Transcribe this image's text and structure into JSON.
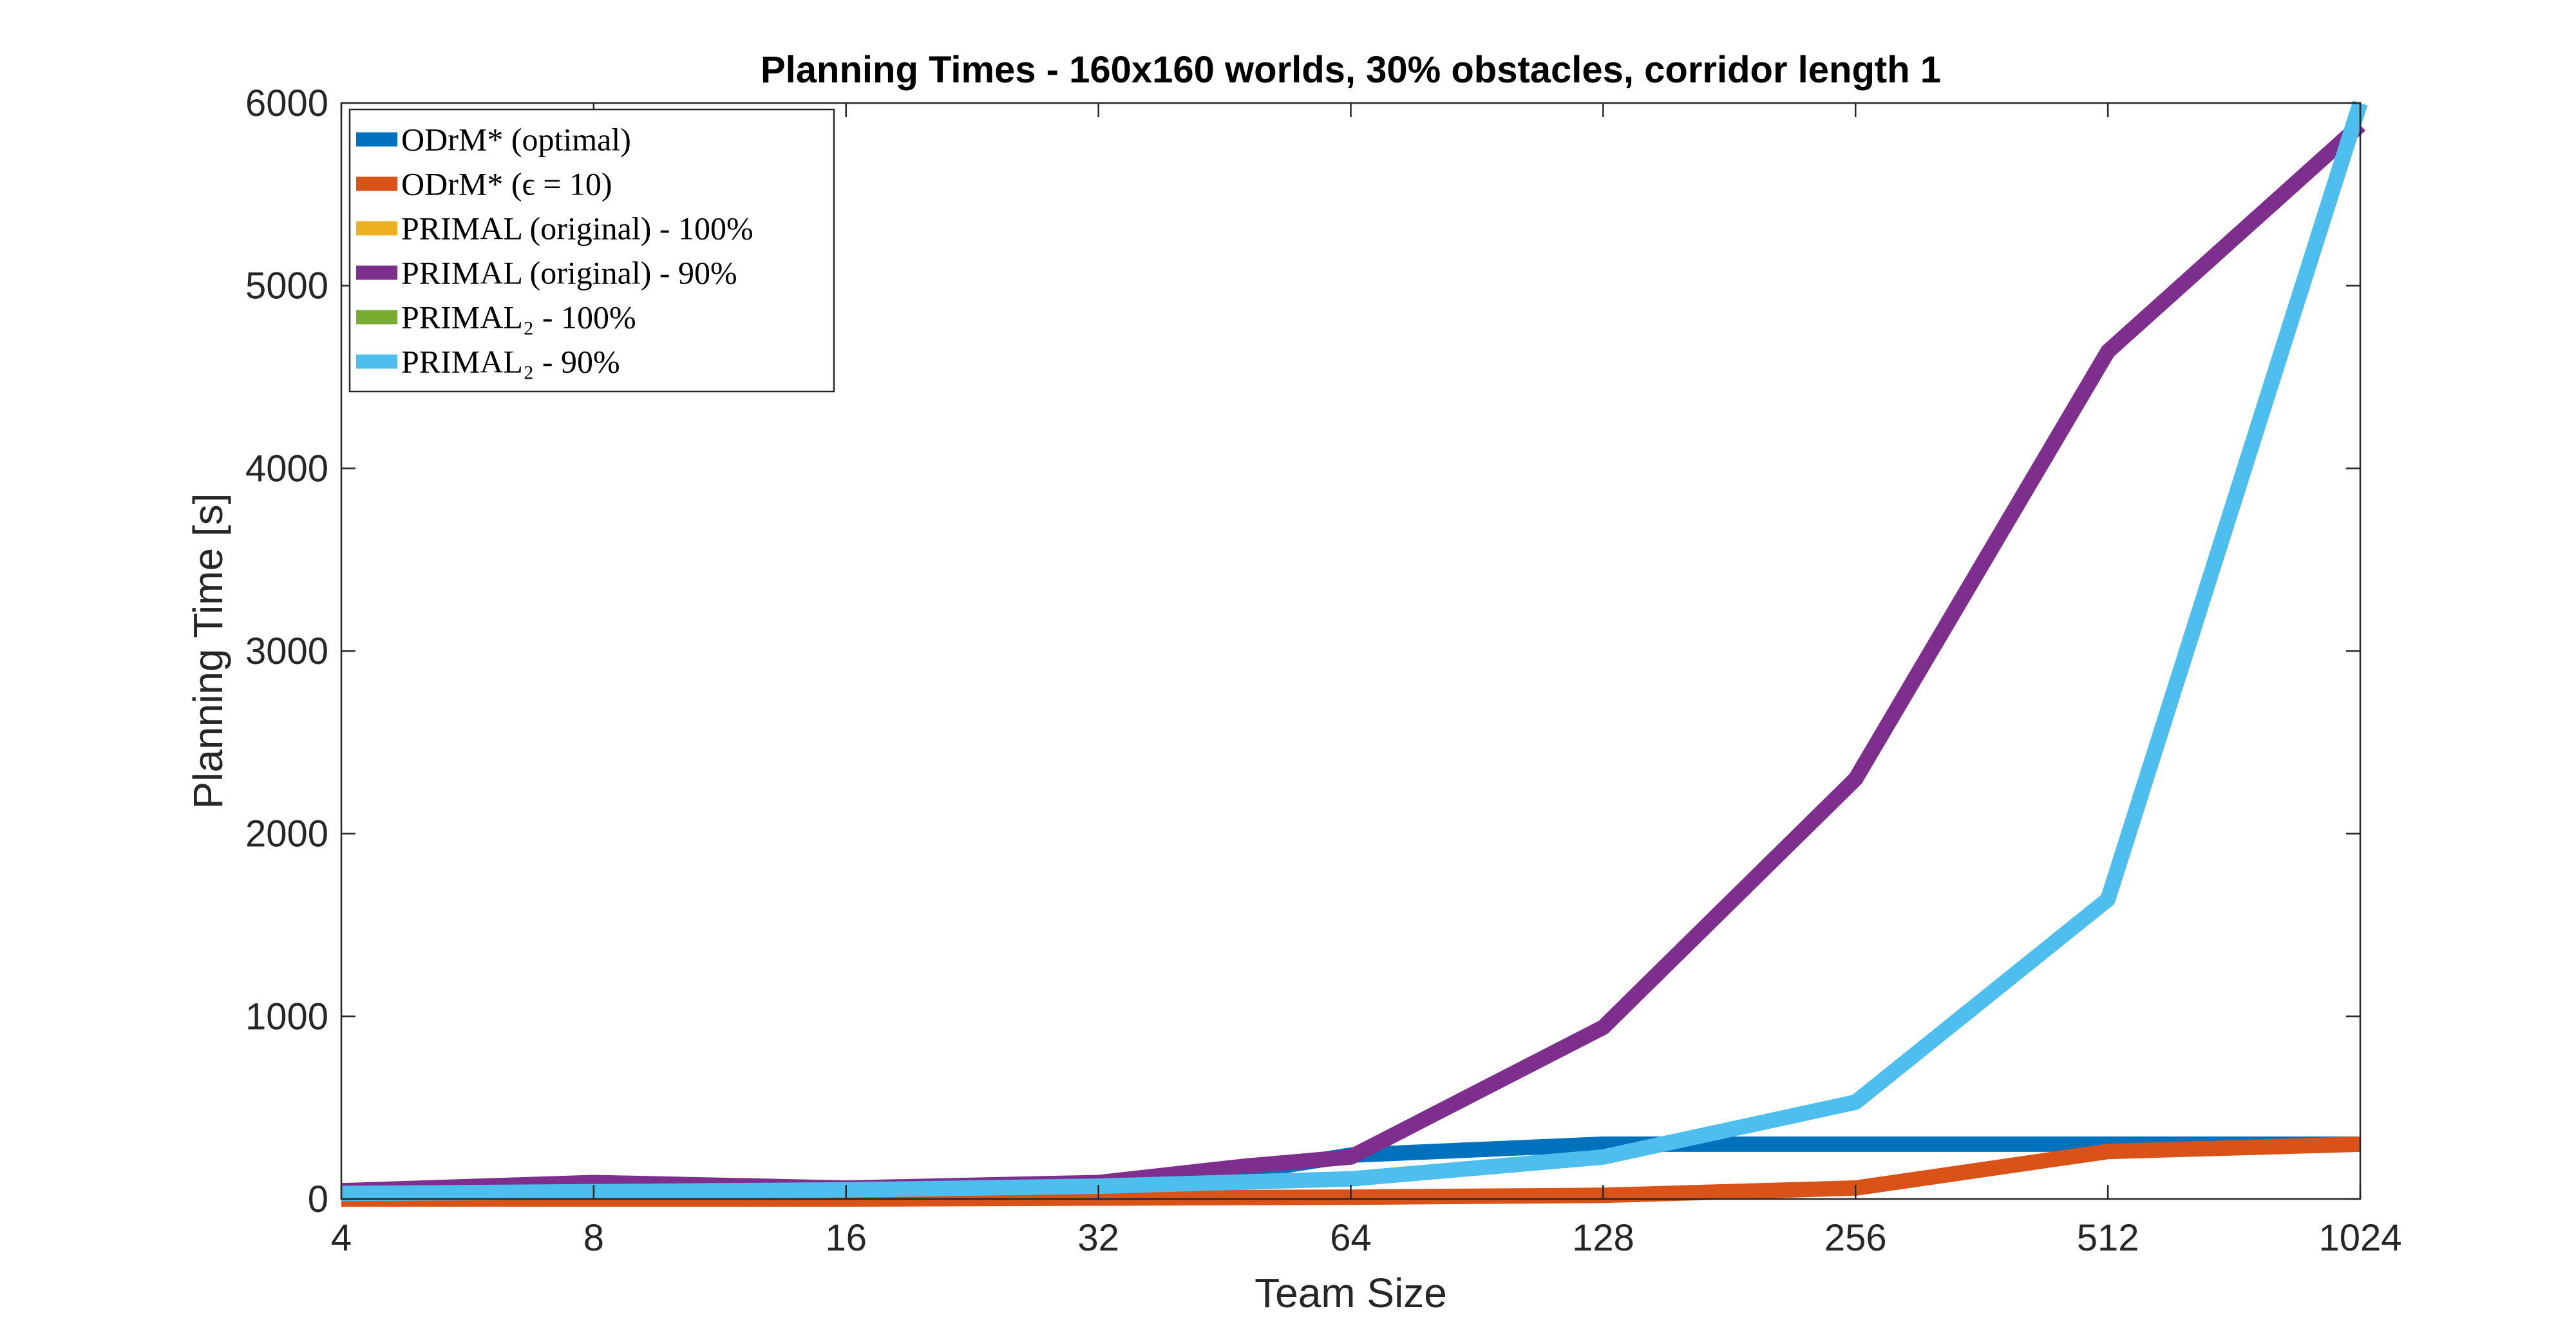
{
  "chart_data": {
    "type": "line",
    "title": "Planning Times - 160x160 worlds, 30% obstacles, corridor length 1",
    "xlabel": "Team Size",
    "ylabel": "Planning Time [s]",
    "x_scale": "log2",
    "xlim": [
      4,
      1024
    ],
    "ylim": [
      0,
      6000
    ],
    "x_ticks": [
      4,
      8,
      16,
      32,
      64,
      128,
      256,
      512,
      1024
    ],
    "x_tick_labels": [
      "4",
      "8",
      "16",
      "32",
      "64",
      "128",
      "256",
      "512",
      "1024"
    ],
    "y_ticks": [
      0,
      1000,
      2000,
      3000,
      4000,
      5000,
      6000
    ],
    "y_tick_labels": [
      "0",
      "1000",
      "2000",
      "3000",
      "4000",
      "5000",
      "6000"
    ],
    "grid": false,
    "legend_position": "top-left",
    "series": [
      {
        "name": "ODrM* (optimal)",
        "color": "#0072BD",
        "x": [
          4,
          8,
          16,
          32,
          48,
          64,
          128,
          256,
          512,
          1024
        ],
        "y": [
          40,
          45,
          50,
          70,
          150,
          240,
          300,
          300,
          300,
          300
        ]
      },
      {
        "name": "ODrM* (ϵ = 10)",
        "color": "#D95319",
        "x": [
          4,
          8,
          16,
          32,
          64,
          128,
          256,
          512,
          1024
        ],
        "y": [
          0,
          0,
          0,
          5,
          10,
          20,
          60,
          260,
          300
        ]
      },
      {
        "name": "PRIMAL (original) - 100%",
        "color": "#EDB120",
        "x": [],
        "y": []
      },
      {
        "name": "PRIMAL (original) - 90%",
        "color": "#7E2F8E",
        "x": [
          4,
          8,
          16,
          32,
          48,
          64,
          128,
          256,
          512,
          1024
        ],
        "y": [
          45,
          90,
          60,
          90,
          180,
          230,
          940,
          2300,
          4640,
          5880
        ]
      },
      {
        "name": "PRIMAL₂ - 100%",
        "color": "#77AC30",
        "x": [],
        "y": []
      },
      {
        "name": "PRIMAL₂ - 90%",
        "color": "#4DBEEE",
        "x": [
          4,
          8,
          16,
          32,
          64,
          128,
          256,
          512,
          1024
        ],
        "y": [
          30,
          40,
          50,
          70,
          110,
          230,
          530,
          1640,
          6000
        ]
      }
    ]
  }
}
